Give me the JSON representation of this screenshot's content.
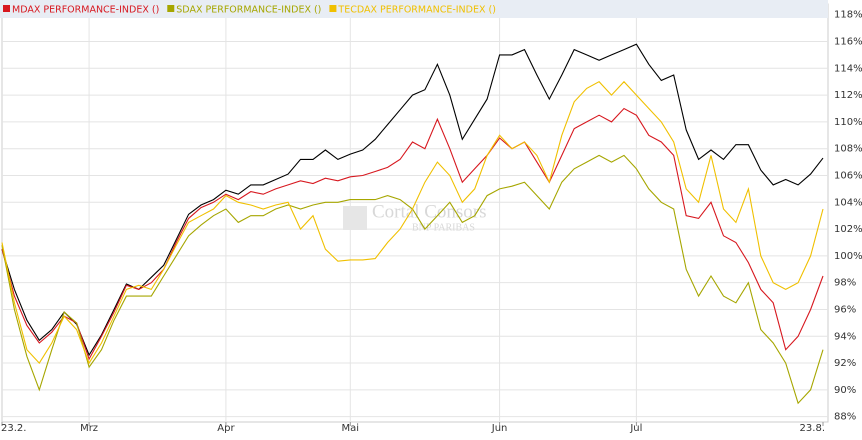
{
  "chart_data": {
    "type": "line",
    "watermark": {
      "brand": "Cortal Consors",
      "sub": "BNP PARIBAS"
    },
    "categories": [
      "23.2.",
      null,
      null,
      null,
      null,
      null,
      null,
      "Mrz",
      null,
      null,
      null,
      null,
      null,
      null,
      null,
      null,
      null,
      null,
      "Apr",
      null,
      null,
      null,
      null,
      null,
      null,
      null,
      null,
      null,
      "Mai",
      null,
      null,
      null,
      null,
      null,
      null,
      null,
      null,
      null,
      null,
      null,
      "Jun",
      null,
      null,
      null,
      null,
      null,
      null,
      null,
      null,
      null,
      null,
      "Jul",
      null,
      null,
      null,
      null,
      null,
      null,
      null,
      null,
      null,
      null,
      null,
      null,
      null,
      null,
      "23.8."
    ],
    "ylim": [
      87.6,
      118.8
    ],
    "yticks": [
      {
        "value": 88,
        "label": "88%"
      },
      {
        "value": 90,
        "label": "90%"
      },
      {
        "value": 92,
        "label": "92%"
      },
      {
        "value": 94,
        "label": "94%"
      },
      {
        "value": 96,
        "label": "96%"
      },
      {
        "value": 98,
        "label": "98%"
      },
      {
        "value": 100,
        "label": "100%"
      },
      {
        "value": 102,
        "label": "102%"
      },
      {
        "value": 104,
        "label": "104%"
      },
      {
        "value": 106,
        "label": "106%"
      },
      {
        "value": 108,
        "label": "108%"
      },
      {
        "value": 110,
        "label": "110%"
      },
      {
        "value": 112,
        "label": "112%"
      },
      {
        "value": 114,
        "label": "114%"
      },
      {
        "value": 116,
        "label": "116%"
      },
      {
        "value": 118,
        "label": "118%"
      }
    ],
    "grid": true,
    "legend": "top-left",
    "series": [
      {
        "color": "#000000",
        "values": [
          100.5,
          97.5,
          95.2,
          93.7,
          94.5,
          95.8,
          94.9,
          92.6,
          94.1,
          96,
          97.9,
          97.5,
          98.4,
          99.3,
          101.2,
          103.1,
          103.8,
          104.2,
          104.9,
          104.6,
          105.3,
          105.3,
          105.7,
          106.1,
          107.2,
          107.2,
          107.9,
          107.2,
          107.6,
          107.9,
          108.7,
          109.8,
          110.9,
          112,
          112.4,
          114.3,
          112,
          108.7,
          110.2,
          111.7,
          115,
          115,
          115.4,
          113.5,
          111.7,
          113.5,
          115.4,
          115,
          114.6,
          115,
          115.4,
          115.8,
          114.3,
          113.1,
          113.5,
          109.4,
          107.2,
          107.9,
          107.2,
          108.3,
          108.3,
          106.4,
          105.3,
          105.7,
          105.3,
          106.1,
          107.3
        ]
      },
      {
        "name": "MDAX PERFORMANCE-INDEX ()",
        "color": "#d7181f",
        "values": [
          100.5,
          97,
          94.8,
          93.5,
          94.3,
          95.5,
          95,
          92.3,
          94,
          95.8,
          97.8,
          97.5,
          98,
          99,
          101,
          102.8,
          103.6,
          104,
          104.6,
          104.2,
          104.8,
          104.6,
          105,
          105.3,
          105.6,
          105.4,
          105.8,
          105.6,
          105.9,
          106,
          106.3,
          106.6,
          107.2,
          108.5,
          108,
          110.2,
          108,
          105.5,
          106.5,
          107.5,
          108.8,
          108,
          108.5,
          107,
          105.5,
          107.5,
          109.5,
          110,
          110.5,
          110,
          111,
          110.5,
          109,
          108.5,
          107.5,
          103,
          102.8,
          104,
          101.5,
          101,
          99.5,
          97.5,
          96.5,
          93,
          94,
          96,
          98.5
        ]
      },
      {
        "name": "SDAX PERFORMANCE-INDEX ()",
        "color": "#a6a600",
        "values": [
          100.8,
          96,
          92.5,
          90,
          93,
          95.8,
          95,
          91.7,
          93,
          95.2,
          97,
          97,
          97,
          98.5,
          100,
          101.5,
          102.3,
          103,
          103.5,
          102.5,
          103,
          103,
          103.5,
          103.8,
          103.5,
          103.8,
          104,
          104,
          104.2,
          104.2,
          104.2,
          104.5,
          104.2,
          103.5,
          102,
          103,
          104,
          102.5,
          103,
          104.5,
          105,
          105.2,
          105.5,
          104.5,
          103.5,
          105.5,
          106.5,
          107,
          107.5,
          107,
          107.5,
          106.5,
          105,
          104,
          103.5,
          99,
          97,
          98.5,
          97,
          96.5,
          98,
          94.5,
          93.5,
          92,
          89,
          90,
          93
        ]
      },
      {
        "name": "TECDAX PERFORMANCE-INDEX ()",
        "color": "#f0c000",
        "values": [
          101,
          96.5,
          93,
          92,
          93.5,
          95.5,
          94.5,
          92,
          93.5,
          95.5,
          97.5,
          97.8,
          97.5,
          99,
          100.8,
          102.5,
          103,
          103.5,
          104.5,
          104,
          103.8,
          103.5,
          103.8,
          104,
          102,
          103,
          100.5,
          99.6,
          99.7,
          99.7,
          99.8,
          101,
          102,
          103.5,
          105.5,
          107,
          106,
          104,
          105,
          107.5,
          109,
          108,
          108.5,
          107.5,
          105.5,
          109,
          111.5,
          112.5,
          113,
          112,
          113,
          112,
          111,
          110,
          108.5,
          105,
          104,
          107.5,
          103.5,
          102.5,
          105,
          100,
          98,
          97.5,
          98,
          100,
          103.5
        ]
      }
    ]
  }
}
